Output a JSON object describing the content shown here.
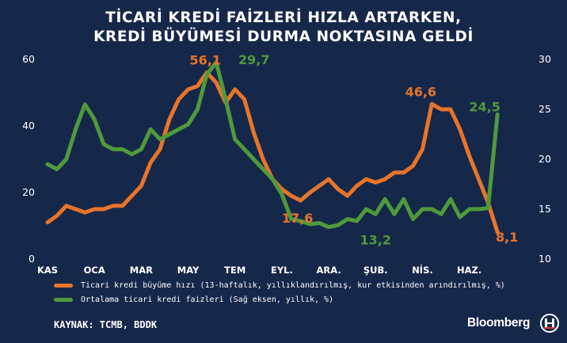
{
  "title_lines": [
    "TİCARİ KREDİ FAİZLERİ HIZLA ARTARKEN,",
    "KREDİ BÜYÜMESİ DURMA NOKTASINA GELDİ"
  ],
  "colors": {
    "background": "#16284a",
    "orange": "#e8742a",
    "green": "#4f9a3a",
    "text": "#ffffff"
  },
  "legend": [
    {
      "label": "Ticari kredi büyüme hızı (13-haftalık, yıllıklandırılmış, kur etkisinden arındırılmış, %)",
      "color": "#e8742a"
    },
    {
      "label": "Ortalama ticari kredi faizleri (Sağ eksen, yıllık, %)",
      "color": "#4f9a3a"
    }
  ],
  "source": "KAYNAK: TCMB, BDDK",
  "brand": "Bloomberg",
  "logo_icon": "bloomberg-ht-logo-icon",
  "chart_data": {
    "type": "line",
    "categories": [
      "KAS",
      "OCA",
      "MAR",
      "MAY",
      "TEM",
      "EYL.",
      "ARA.",
      "ŞUB.",
      "NİS.",
      "HAZ."
    ],
    "left_axis": {
      "ylim": [
        0,
        60
      ],
      "ticks": [
        "0",
        "20",
        "40",
        "60"
      ]
    },
    "right_axis": {
      "ylim": [
        10,
        30
      ],
      "ticks": [
        "10",
        "15",
        "20",
        "25",
        "30"
      ]
    },
    "grid": false,
    "series": [
      {
        "name": "Ticari kredi büyüme hızı (13-haftalık, yıllıklandırılmış, kur etkisinden arındırılmış, %)",
        "axis": "left",
        "color": "#e8742a",
        "x": [
          0,
          0.2,
          0.4,
          0.6,
          0.8,
          1,
          1.2,
          1.4,
          1.6,
          1.8,
          2,
          2.2,
          2.4,
          2.6,
          2.8,
          3,
          3.2,
          3.4,
          3.6,
          3.8,
          4,
          4.2,
          4.4,
          4.6,
          4.8,
          5,
          5.2,
          5.4,
          5.6,
          5.8,
          6,
          6.2,
          6.4,
          6.6,
          6.8,
          7,
          7.2,
          7.4,
          7.6,
          7.8,
          8,
          8.2,
          8.4,
          8.6,
          8.8,
          9,
          9.2,
          9.4,
          9.6,
          9.8
        ],
        "values": [
          11,
          13,
          16,
          15,
          14,
          15,
          15,
          16,
          16,
          19,
          22,
          29,
          33,
          42,
          48,
          51,
          52,
          56.1,
          53,
          47,
          51,
          48,
          38,
          30,
          24,
          21,
          19,
          17.6,
          20,
          22,
          24,
          21,
          19,
          22,
          24,
          23,
          24,
          26,
          26,
          28,
          33,
          46.6,
          45,
          45,
          39,
          31,
          24,
          17,
          8.1,
          null
        ]
      },
      {
        "name": "Ortalama ticari kredi faizleri (Sağ eksen, yıllık, %)",
        "axis": "right",
        "color": "#4f9a3a",
        "x": [
          0,
          0.2,
          0.4,
          0.6,
          0.8,
          1,
          1.2,
          1.4,
          1.6,
          1.8,
          2,
          2.2,
          2.4,
          2.6,
          2.8,
          3,
          3.2,
          3.4,
          3.6,
          3.8,
          4,
          4.2,
          4.4,
          4.6,
          4.8,
          5,
          5.2,
          5.4,
          5.6,
          5.8,
          6,
          6.2,
          6.4,
          6.6,
          6.8,
          7,
          7.2,
          7.4,
          7.6,
          7.8,
          8,
          8.2,
          8.4,
          8.6,
          8.8,
          9,
          9.2,
          9.4,
          9.6,
          9.8
        ],
        "values": [
          19.5,
          19,
          20,
          23,
          25.5,
          24,
          21.5,
          21,
          21,
          20.5,
          21,
          23,
          22,
          22.5,
          23,
          23.5,
          25,
          28.5,
          29.7,
          26,
          22,
          21,
          20,
          19,
          18,
          16.5,
          14,
          13.8,
          13.5,
          13.6,
          13.2,
          13.4,
          14,
          13.8,
          15,
          14.5,
          16,
          14.5,
          16,
          14,
          15,
          15,
          14.5,
          16,
          14.2,
          15,
          15,
          15.1,
          24.5,
          null
        ]
      }
    ],
    "annotations": [
      {
        "text": "56,1",
        "series": 0,
        "x": 3.4,
        "value": 56.1
      },
      {
        "text": "29,7",
        "series": 1,
        "x": 4.0,
        "value": 29.7
      },
      {
        "text": "17,6",
        "series": 0,
        "x": 5.4,
        "value": 17.6
      },
      {
        "text": "13,2",
        "series": 1,
        "x": 7.0,
        "value": 13.2
      },
      {
        "text": "46,6",
        "series": 0,
        "x": 8.2,
        "value": 46.6
      },
      {
        "text": "24,5",
        "series": 1,
        "x": 9.6,
        "value": 24.5
      },
      {
        "text": "8,1",
        "series": 0,
        "x": 9.6,
        "value": 8.1
      }
    ]
  }
}
